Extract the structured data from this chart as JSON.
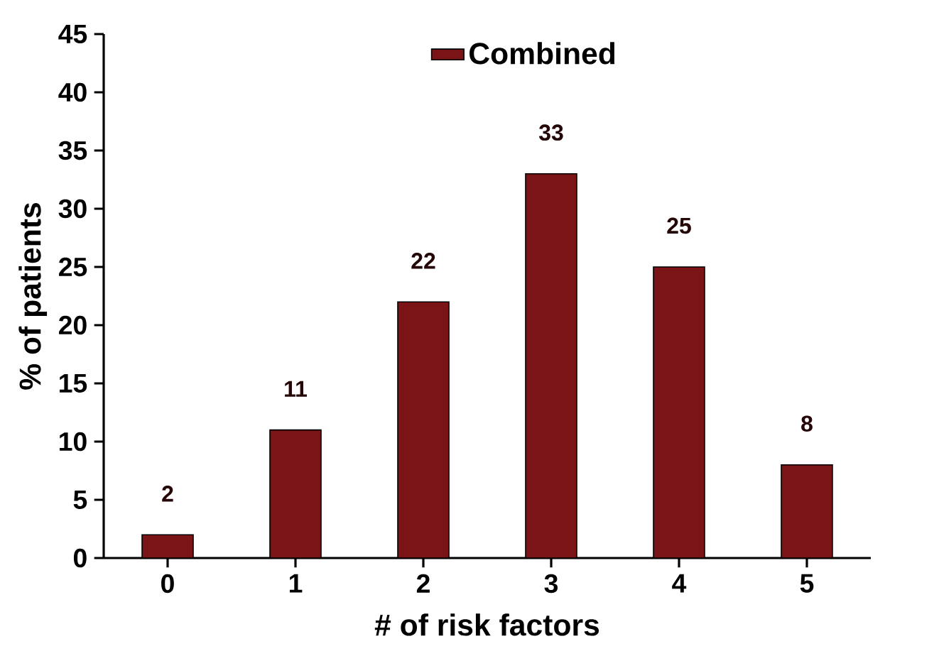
{
  "chart_data": {
    "type": "bar",
    "xlabel": "# of risk factors",
    "ylabel": "% of patients",
    "categories": [
      "0",
      "1",
      "2",
      "3",
      "4",
      "5"
    ],
    "series": [
      {
        "name": "Combined",
        "color": "#7b1416",
        "values": [
          2,
          11,
          22,
          33,
          25,
          8
        ]
      }
    ],
    "ylim": [
      0,
      45
    ],
    "yticks": [
      0,
      5,
      10,
      15,
      20,
      25,
      30,
      35,
      40,
      45
    ],
    "data_labels": true,
    "legend": "top",
    "grid": false
  }
}
